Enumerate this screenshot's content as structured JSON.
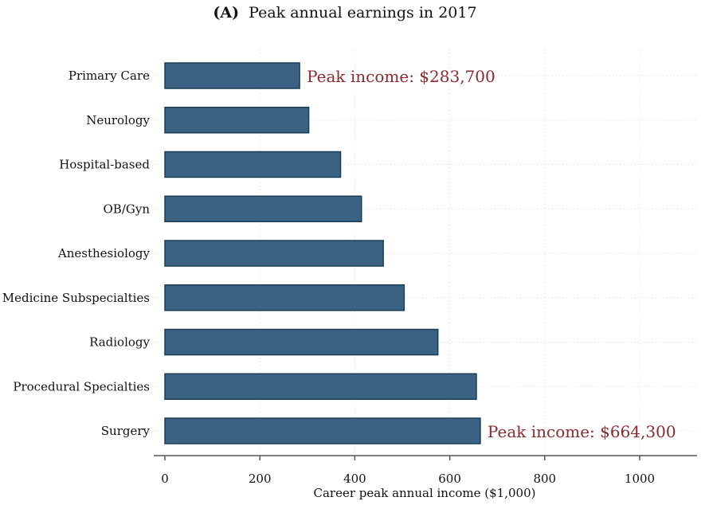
{
  "chart_data": {
    "type": "bar",
    "orientation": "horizontal",
    "title_prefix": "(A)",
    "title": "Peak annual earnings in 2017",
    "xlabel": "Career peak annual income ($1,000)",
    "ylabel": "",
    "xlim": [
      0,
      1000
    ],
    "xticks": [
      "0",
      "200",
      "400",
      "600",
      "800",
      "1000"
    ],
    "grid": true,
    "categories": [
      "Primary Care",
      "Neurology",
      "Hospital-based",
      "OB/Gyn",
      "Anesthesiology",
      "Medicine Subspecialties",
      "Radiology",
      "Procedural Specialties",
      "Surgery"
    ],
    "values": [
      283.7,
      303,
      370,
      414,
      460,
      504,
      575,
      656,
      664.3
    ],
    "annotations": [
      {
        "category": "Primary Care",
        "text": "Peak income: $283,700"
      },
      {
        "category": "Surgery",
        "text": "Peak income: $664,300"
      }
    ],
    "colors": {
      "bar": "#3b6282",
      "bar_edge": "#1b3e56",
      "annotation": "#8b2a2f",
      "axis": "#555555",
      "grid": "#e4e4e4"
    }
  }
}
